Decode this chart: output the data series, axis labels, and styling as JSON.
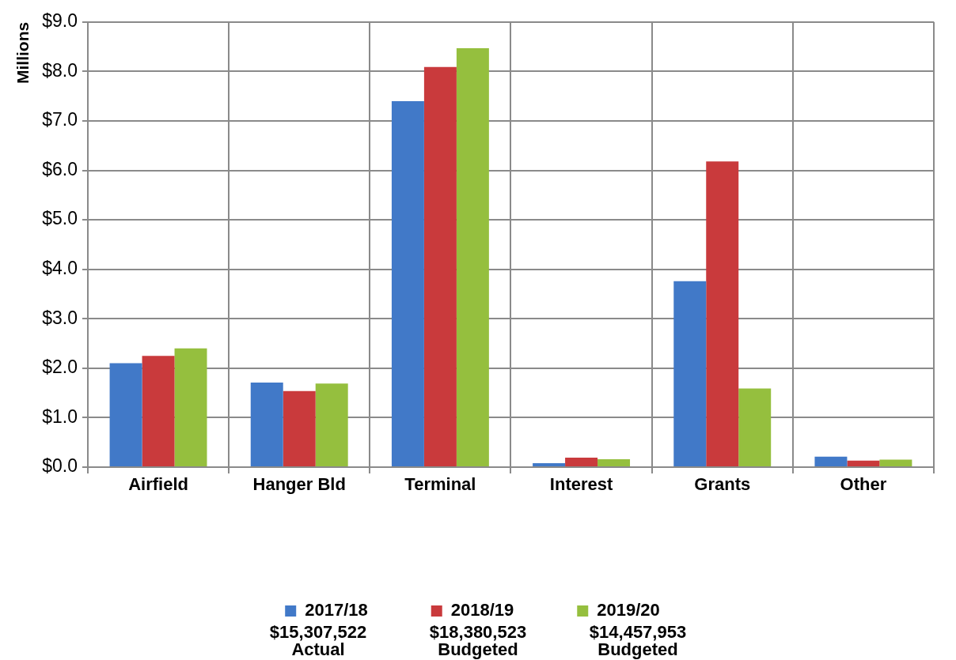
{
  "chart_data": {
    "type": "bar",
    "ylabel": "Millions",
    "categories": [
      "Airfield",
      "Hanger Bld",
      "Terminal",
      "Interest",
      "Grants",
      "Other"
    ],
    "series": [
      {
        "name": "2017/18",
        "color": "#4179c8",
        "values": [
          2.1,
          1.71,
          7.4,
          0.08,
          3.76,
          0.21
        ]
      },
      {
        "name": "2018/19",
        "color": "#c93a3c",
        "values": [
          2.25,
          1.54,
          8.09,
          0.19,
          6.18,
          0.13
        ]
      },
      {
        "name": "2019/20",
        "color": "#95bf3e",
        "values": [
          2.4,
          1.69,
          8.47,
          0.16,
          1.59,
          0.15
        ]
      }
    ],
    "ylim": [
      0,
      9
    ],
    "yticks": [
      {
        "value": 0,
        "label": "$0.0"
      },
      {
        "value": 1,
        "label": "$1.0"
      },
      {
        "value": 2,
        "label": "$2.0"
      },
      {
        "value": 3,
        "label": "$3.0"
      },
      {
        "value": 4,
        "label": "$4.0"
      },
      {
        "value": 5,
        "label": "$5.0"
      },
      {
        "value": 6,
        "label": "$6.0"
      },
      {
        "value": 7,
        "label": "$7.0"
      },
      {
        "value": 8,
        "label": "$8.0"
      },
      {
        "value": 9,
        "label": "$9.0"
      }
    ],
    "grid": true,
    "legend": "bottom",
    "annotations": [
      "$15,307,522\nActual",
      "$18,380,523\nBudgeted",
      "$14,457,953\nBudgeted"
    ]
  }
}
